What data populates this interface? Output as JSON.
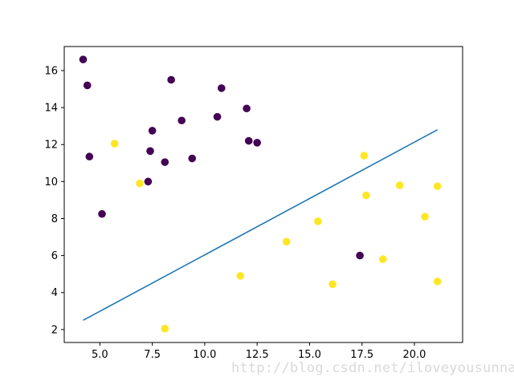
{
  "chart_data": {
    "type": "scatter",
    "title": "",
    "xlabel": "",
    "ylabel": "",
    "xlim": [
      3.3,
      22.3
    ],
    "ylim": [
      1.3,
      17.3
    ],
    "xticks": [
      5.0,
      7.5,
      10.0,
      12.5,
      15.0,
      17.5,
      20.0
    ],
    "xtick_labels": [
      "5.0",
      "7.5",
      "10.0",
      "12.5",
      "15.0",
      "17.5",
      "20.0"
    ],
    "yticks": [
      2,
      4,
      6,
      8,
      10,
      12,
      14,
      16
    ],
    "ytick_labels": [
      "2",
      "4",
      "6",
      "8",
      "10",
      "12",
      "14",
      "16"
    ],
    "grid": false,
    "legend": "none",
    "series": [
      {
        "color": "#440154",
        "points": [
          [
            4.2,
            16.6
          ],
          [
            4.4,
            15.2
          ],
          [
            4.5,
            11.35
          ],
          [
            5.1,
            8.25
          ],
          [
            7.3,
            10.0
          ],
          [
            7.4,
            11.65
          ],
          [
            7.5,
            12.75
          ],
          [
            8.1,
            11.05
          ],
          [
            8.4,
            15.5
          ],
          [
            8.9,
            13.3
          ],
          [
            9.4,
            11.25
          ],
          [
            10.6,
            13.5
          ],
          [
            10.8,
            15.05
          ],
          [
            12.0,
            13.95
          ],
          [
            12.1,
            12.2
          ],
          [
            12.5,
            12.1
          ],
          [
            17.4,
            6.0
          ]
        ]
      },
      {
        "color": "#fde725",
        "points": [
          [
            5.7,
            12.05
          ],
          [
            6.9,
            9.9
          ],
          [
            8.1,
            2.05
          ],
          [
            11.7,
            4.9
          ],
          [
            13.9,
            6.75
          ],
          [
            15.4,
            7.85
          ],
          [
            16.1,
            4.45
          ],
          [
            17.6,
            11.4
          ],
          [
            17.7,
            9.25
          ],
          [
            18.5,
            5.8
          ],
          [
            19.3,
            9.8
          ],
          [
            20.5,
            8.1
          ],
          [
            21.1,
            9.75
          ],
          [
            21.1,
            4.6
          ]
        ]
      }
    ],
    "line": {
      "color": "#1f77b4",
      "points": [
        [
          4.2,
          2.5
        ],
        [
          21.1,
          12.8
        ]
      ]
    }
  },
  "watermark": "http://blog.csdn.net/iloveyousunna"
}
